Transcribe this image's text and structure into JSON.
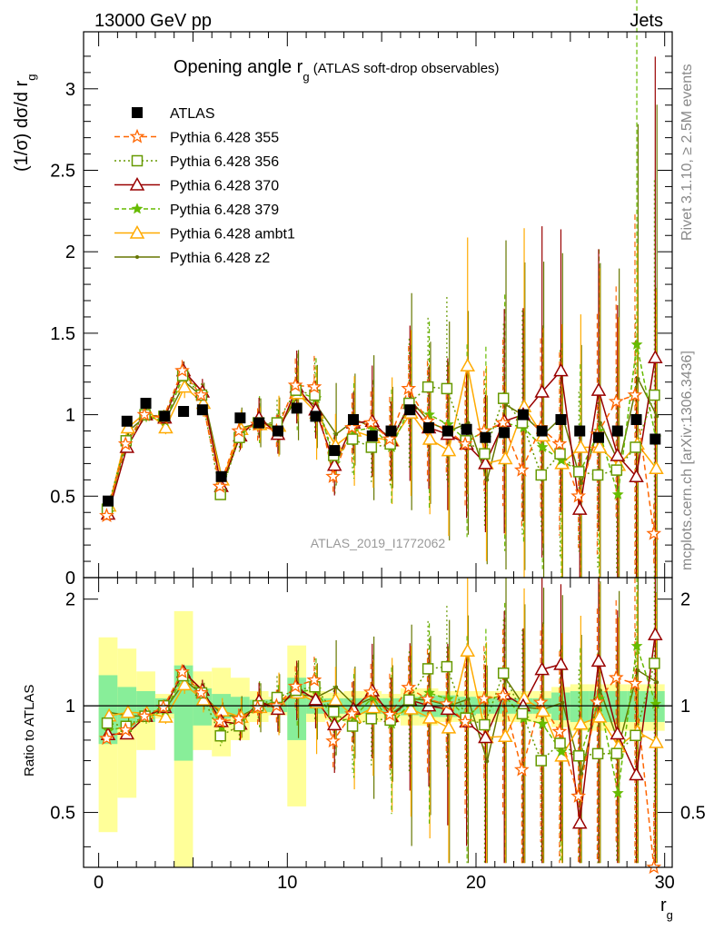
{
  "header": {
    "energy": "13000 GeV pp",
    "category": "Jets",
    "rivet": "Rivet 3.1.10, ≥ 2.5M events",
    "mcplots": "mcplots.cern.ch [arXiv:1306.3436]",
    "analysis_id": "ATLAS_2019_I1772062"
  },
  "chart_data": [
    {
      "type": "line",
      "title": "Opening angle r_g (ATLAS soft-drop observables)",
      "xlabel": "r_g",
      "ylabel": "(1/σ) dσ/d r_g",
      "xlim": [
        -0.8,
        30.4
      ],
      "ylim": [
        0,
        3.35
      ],
      "xticks": [
        0,
        10,
        20,
        30
      ],
      "yticks": [
        0,
        0.5,
        1,
        1.5,
        2,
        2.5,
        3
      ],
      "legend_position": "top-left",
      "x": [
        0.5,
        1.5,
        2.5,
        3.5,
        4.5,
        5.5,
        6.5,
        7.5,
        8.5,
        9.5,
        10.5,
        11.5,
        12.5,
        13.5,
        14.5,
        15.5,
        16.5,
        17.5,
        18.5,
        19.5,
        20.5,
        21.5,
        22.5,
        23.5,
        24.5,
        25.5,
        26.5,
        27.5,
        28.5,
        29.5
      ],
      "series": [
        {
          "name": "ATLAS",
          "color": "#000000",
          "marker": "filled-square",
          "values": [
            0.47,
            0.96,
            1.07,
            0.99,
            1.02,
            1.03,
            0.62,
            0.98,
            0.95,
            0.9,
            1.04,
            0.99,
            0.78,
            0.97,
            0.87,
            0.9,
            1.03,
            0.92,
            0.9,
            0.91,
            0.86,
            0.89,
            1.0,
            0.9,
            0.97,
            0.9,
            0.86,
            0.9,
            0.97,
            0.85
          ]
        },
        {
          "name": "Pythia 6.428 355",
          "color": "#ff6600",
          "marker": "open-star",
          "dash": "6,4",
          "values": [
            0.38,
            0.82,
            1.0,
            0.98,
            1.27,
            1.12,
            0.56,
            0.9,
            0.94,
            0.9,
            1.18,
            1.17,
            0.62,
            0.92,
            0.95,
            0.85,
            1.16,
            0.96,
            0.91,
            0.82,
            0.9,
            0.95,
            0.66,
            0.92,
            0.82,
            0.5,
            0.88,
            1.08,
            1.12,
            0.27
          ]
        },
        {
          "name": "Pythia 6.428 356",
          "color": "#669900",
          "marker": "open-square",
          "dash": "2,3",
          "values": [
            0.42,
            0.84,
            1.0,
            0.99,
            1.24,
            1.12,
            0.51,
            0.86,
            0.95,
            0.95,
            1.15,
            1.12,
            0.75,
            0.85,
            0.8,
            0.82,
            1.07,
            1.17,
            1.16,
            0.84,
            0.76,
            1.1,
            0.95,
            0.63,
            0.76,
            0.65,
            0.63,
            0.66,
            0.8,
            1.12
          ]
        },
        {
          "name": "Pythia 6.428 370",
          "color": "#990000",
          "marker": "open-triangle",
          "values": [
            0.39,
            0.8,
            1.0,
            0.98,
            1.27,
            1.14,
            0.56,
            0.87,
            0.98,
            0.88,
            1.17,
            1.03,
            0.69,
            0.95,
            0.96,
            0.84,
            1.07,
            0.92,
            0.88,
            0.82,
            0.7,
            0.96,
            1.0,
            1.14,
            1.27,
            0.42,
            1.15,
            0.75,
            0.62,
            1.35
          ]
        },
        {
          "name": "Pythia 6.428 379",
          "color": "#66bb00",
          "marker": "star",
          "dash": "5,3",
          "values": [
            0.4,
            0.84,
            0.99,
            0.96,
            1.25,
            1.13,
            0.54,
            0.89,
            0.97,
            0.9,
            1.14,
            1.1,
            0.7,
            0.9,
            0.92,
            0.8,
            1.05,
            1.0,
            0.94,
            0.84,
            0.9,
            0.95,
            0.92,
            0.8,
            0.72,
            0.65,
            0.9,
            0.51,
            1.43,
            0.86
          ]
        },
        {
          "name": "Pythia 6.428 ambt1",
          "color": "#ffaa00",
          "marker": "open-triangle",
          "values": [
            0.44,
            0.92,
            1.02,
            0.92,
            1.17,
            1.07,
            0.6,
            0.91,
            0.94,
            0.93,
            1.13,
            1.01,
            0.81,
            0.9,
            0.86,
            0.84,
            1.01,
            0.85,
            0.78,
            1.3,
            0.7,
            0.73,
            1.05,
            0.87,
            0.7,
            0.8,
            0.8,
            0.69,
            0.82,
            0.67
          ]
        },
        {
          "name": "Pythia 6.428 z2",
          "color": "#667700",
          "marker": "dot",
          "values": [
            0.45,
            0.9,
            1.0,
            0.98,
            1.2,
            1.1,
            0.58,
            0.92,
            0.95,
            0.93,
            1.12,
            1.05,
            0.88,
            0.97,
            0.92,
            0.86,
            1.08,
            0.95,
            0.9,
            0.95,
            0.6,
            1.06,
            0.99,
            0.88,
            0.99,
            0.58,
            0.95,
            0.7,
            1.22,
            0.99
          ]
        }
      ]
    },
    {
      "type": "line",
      "ylabel": "Ratio to ATLAS",
      "xlabel": "r_g",
      "xlim": [
        -0.8,
        30.4
      ],
      "ylim": [
        0.35,
        2.3
      ],
      "xticks": [
        0,
        10,
        20,
        30
      ],
      "yticks": [
        0.5,
        1,
        2
      ],
      "reference_line": 1,
      "band_inner": [
        0.22,
        0.13,
        0.1,
        0.05,
        0.3,
        0.12,
        0.08,
        0.06,
        0.04,
        0.04,
        0.2,
        0.05,
        0.05,
        0.05,
        0.05,
        0.05,
        0.06,
        0.07,
        0.07,
        0.06,
        0.05,
        0.05,
        0.05,
        0.05,
        0.09,
        0.1,
        0.1,
        0.1,
        0.1,
        0.1
      ],
      "band_outer": [
        0.56,
        0.45,
        0.25,
        0.08,
        0.85,
        0.25,
        0.28,
        0.2,
        0.1,
        0.06,
        0.48,
        0.1,
        0.09,
        0.1,
        0.1,
        0.08,
        0.12,
        0.12,
        0.1,
        0.1,
        0.1,
        0.1,
        0.1,
        0.1,
        0.13,
        0.15,
        0.15,
        0.15,
        0.15,
        0.15
      ]
    }
  ]
}
